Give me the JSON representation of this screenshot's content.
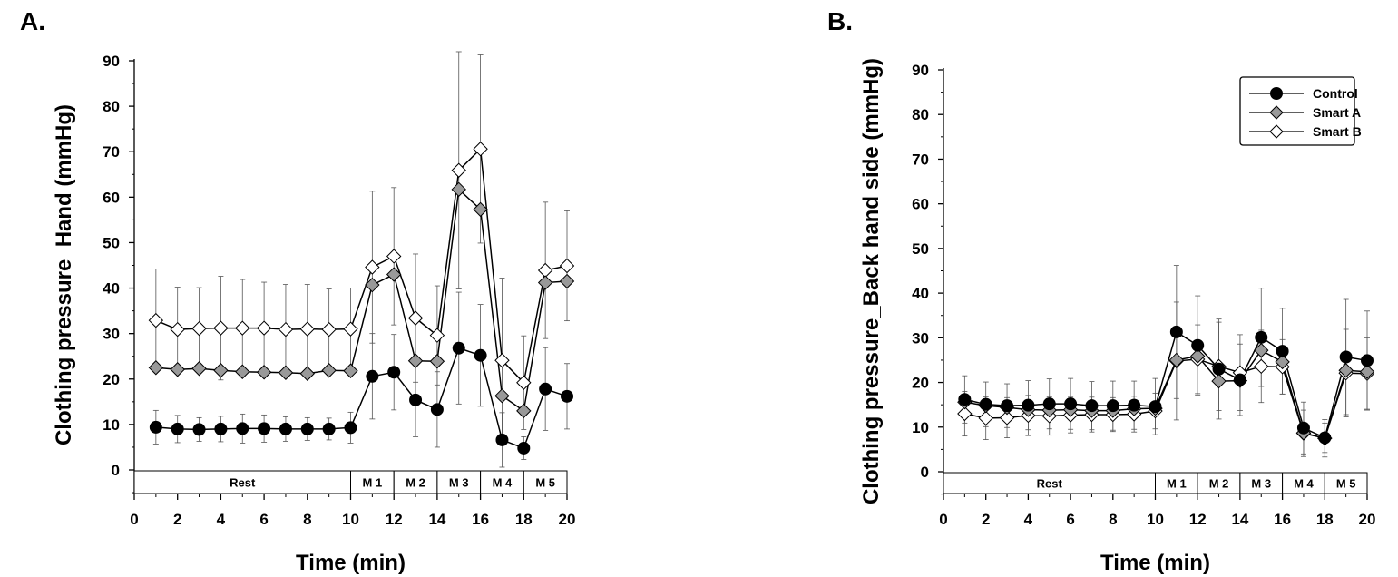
{
  "chart_data": [
    {
      "type": "line",
      "panel_label": "A.",
      "xlabel": "Time (min)",
      "ylabel": "Clothing pressure_Hand (mmHg)",
      "xlim": [
        0,
        20
      ],
      "ylim": [
        0,
        90
      ],
      "xticks": [
        "0",
        "2",
        "4",
        "6",
        "8",
        "10",
        "12",
        "14",
        "16",
        "18",
        "20"
      ],
      "yticks": [
        "0",
        "10",
        "20",
        "30",
        "40",
        "50",
        "60",
        "70",
        "80",
        "90"
      ],
      "phases": [
        {
          "label": "Rest",
          "start": 0,
          "end": 10
        },
        {
          "label": "M 1",
          "start": 10,
          "end": 12
        },
        {
          "label": "M 2",
          "start": 12,
          "end": 14
        },
        {
          "label": "M 3",
          "start": 14,
          "end": 16
        },
        {
          "label": "M 4",
          "start": 16,
          "end": 18
        },
        {
          "label": "M 5",
          "start": 18,
          "end": 20
        }
      ],
      "x": [
        1,
        2,
        3,
        4,
        5,
        6,
        7,
        8,
        9,
        10,
        11,
        12,
        13,
        14,
        15,
        16,
        17,
        18,
        19,
        20
      ],
      "series": [
        {
          "name": "Control",
          "marker": "circle",
          "fill": "#000000",
          "values": [
            9.4,
            9.0,
            8.9,
            9.0,
            9.1,
            9.1,
            9.0,
            9.0,
            9.0,
            9.3,
            20.6,
            21.5,
            15.4,
            13.3,
            26.8,
            25.2,
            6.6,
            4.8,
            17.8,
            16.2
          ],
          "sd": [
            3.7,
            3.0,
            2.6,
            2.8,
            3.2,
            3.0,
            2.7,
            2.5,
            2.4,
            3.4,
            9.4,
            8.3,
            8.1,
            8.3,
            12.3,
            11.2,
            6.0,
            2.5,
            9.1,
            7.2
          ]
        },
        {
          "name": "Smart A",
          "marker": "diamond",
          "fill": "#999999",
          "values": [
            22.5,
            22.1,
            22.3,
            21.9,
            21.6,
            21.5,
            21.4,
            21.2,
            21.9,
            21.8,
            40.7,
            43.0,
            24.0,
            23.9,
            61.7,
            57.3,
            16.3,
            13.0,
            41.2,
            41.5
          ],
          "sd": []
        },
        {
          "name": "Smart B",
          "marker": "diamond",
          "fill": "#ffffff",
          "values": [
            32.9,
            30.9,
            31.1,
            31.2,
            31.2,
            31.2,
            30.9,
            31.0,
            30.9,
            31.0,
            44.6,
            47.0,
            33.4,
            29.6,
            65.9,
            70.6,
            24.1,
            19.2,
            43.9,
            44.9
          ],
          "sd": [
            11.3,
            9.3,
            9.0,
            11.4,
            10.7,
            10.1,
            9.9,
            9.8,
            8.9,
            9.0,
            16.7,
            15.1,
            14.1,
            10.9,
            26.1,
            20.7,
            18.1,
            10.3,
            15.0,
            12.1
          ]
        }
      ]
    },
    {
      "type": "line",
      "panel_label": "B.",
      "xlabel": "Time (min)",
      "ylabel": "Clothing pressure_Back hand side (mmHg)",
      "xlim": [
        0,
        20
      ],
      "ylim": [
        0,
        90
      ],
      "xticks": [
        "0",
        "2",
        "4",
        "6",
        "8",
        "10",
        "12",
        "14",
        "16",
        "18",
        "20"
      ],
      "yticks": [
        "0",
        "10",
        "20",
        "30",
        "40",
        "50",
        "60",
        "70",
        "80",
        "90"
      ],
      "legend": "top-right",
      "phases": [
        {
          "label": "Rest",
          "start": 0,
          "end": 10
        },
        {
          "label": "M 1",
          "start": 10,
          "end": 12
        },
        {
          "label": "M 2",
          "start": 12,
          "end": 14
        },
        {
          "label": "M 3",
          "start": 14,
          "end": 16
        },
        {
          "label": "M 4",
          "start": 16,
          "end": 18
        },
        {
          "label": "M 5",
          "start": 18,
          "end": 20
        }
      ],
      "x": [
        1,
        2,
        3,
        4,
        5,
        6,
        7,
        8,
        9,
        10,
        11,
        12,
        13,
        14,
        15,
        16,
        17,
        18,
        19,
        20
      ],
      "series": [
        {
          "name": "Control",
          "marker": "circle",
          "fill": "#000000",
          "values": [
            16.2,
            15.1,
            14.8,
            14.9,
            15.2,
            15.2,
            14.8,
            14.8,
            14.9,
            14.6,
            31.3,
            28.3,
            23.0,
            20.6,
            30.1,
            27.0,
            9.8,
            7.6,
            25.7,
            24.9
          ],
          "sd": [
            5.3,
            5.0,
            4.9,
            5.5,
            5.6,
            5.7,
            5.4,
            5.5,
            5.4,
            6.3,
            14.9,
            11.1,
            11.2,
            8.0,
            11.0,
            9.6,
            5.8,
            3.3,
            12.9,
            11.1
          ]
        },
        {
          "name": "Smart A",
          "marker": "diamond",
          "fill": "#999999",
          "values": [
            15.6,
            14.8,
            14.4,
            13.9,
            13.8,
            13.9,
            13.7,
            13.7,
            14.1,
            14.2,
            25.0,
            25.9,
            20.3,
            20.4,
            27.2,
            24.6,
            8.7,
            7.5,
            22.7,
            22.4
          ],
          "sd": []
        },
        {
          "name": "Smart B",
          "marker": "diamond",
          "fill": "#ffffff",
          "values": [
            13.0,
            12.0,
            12.1,
            12.6,
            12.5,
            12.7,
            12.8,
            12.8,
            12.9,
            13.6,
            24.8,
            25.2,
            23.6,
            22.2,
            23.6,
            23.5,
            8.6,
            7.5,
            22.1,
            22.0
          ],
          "sd": [
            5.0,
            4.8,
            4.5,
            4.5,
            4.3,
            4.0,
            3.9,
            3.8,
            4.0,
            4.0,
            13.2,
            7.7,
            9.9,
            8.5,
            8.1,
            6.1,
            5.2,
            4.2,
            9.8,
            8.0
          ]
        }
      ]
    }
  ]
}
